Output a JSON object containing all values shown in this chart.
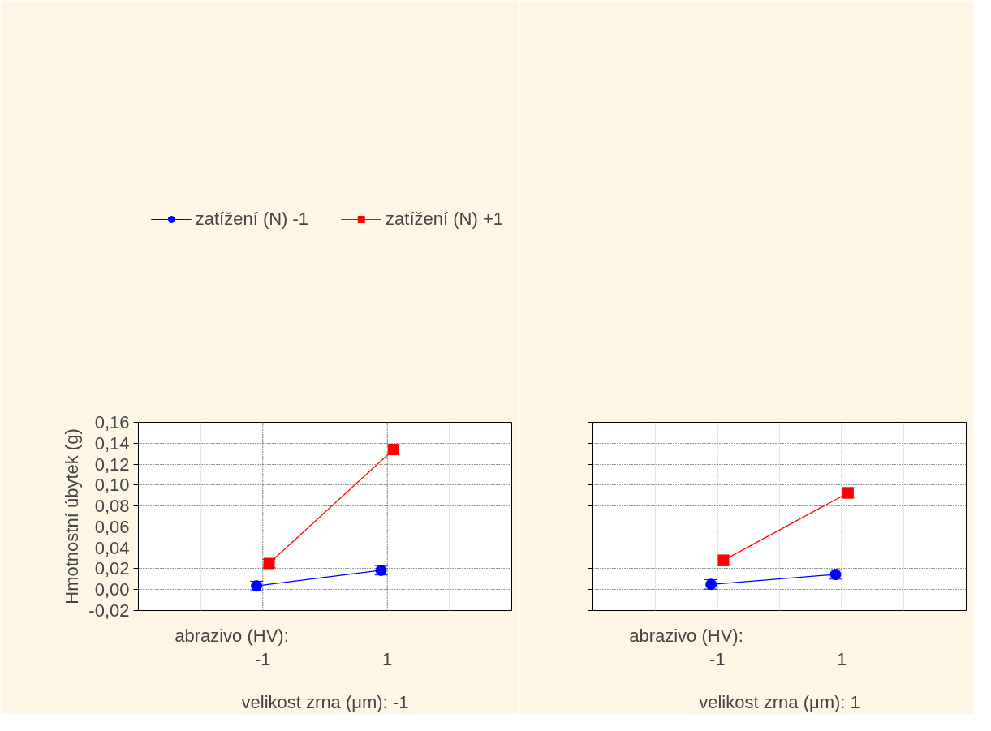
{
  "chart_data": [
    {
      "type": "line",
      "categories": [
        "-1",
        "1"
      ],
      "xlabel": "velikost zrna (μm): -1",
      "ylabel": "Hmotnostní úbytek (g)",
      "annotations": [
        "abrazivo (HV):"
      ],
      "ylim": [
        -0.02,
        0.16
      ],
      "yticks": [
        {
          "value": -0.02,
          "label": "-0,02"
        },
        {
          "value": 0,
          "label": "0,00"
        },
        {
          "value": 0.02,
          "label": "0,02"
        },
        {
          "value": 0.04,
          "label": "0,04"
        },
        {
          "value": 0.06,
          "label": "0,06"
        },
        {
          "value": 0.08,
          "label": "0,08"
        },
        {
          "value": 0.1,
          "label": "0,10"
        },
        {
          "value": 0.12,
          "label": "0,12"
        },
        {
          "value": 0.14,
          "label": "0,14"
        },
        {
          "value": 0.16,
          "label": "0,16"
        }
      ],
      "grid": true,
      "legend": "top",
      "series": [
        {
          "name": "zatížení (N) -1",
          "color": "#0000ff",
          "marker": "circle",
          "values": [
            0.0035,
            0.0185
          ],
          "errors": [
            0.0045,
            0.0045
          ]
        },
        {
          "name": "zatížení (N) +1",
          "color": "#ff0000",
          "marker": "square",
          "values": [
            0.025,
            0.134
          ],
          "errors": [
            0.004,
            0.004
          ]
        }
      ]
    },
    {
      "type": "line",
      "categories": [
        "-1",
        "1"
      ],
      "xlabel": "velikost zrna (μm): 1",
      "annotations": [
        "abrazivo (HV):"
      ],
      "ylim": [
        -0.02,
        0.16
      ],
      "yticks": [
        -0.02,
        0,
        0.02,
        0.04,
        0.06,
        0.08,
        0.1,
        0.12,
        0.14,
        0.16
      ],
      "grid": true,
      "tick_labels": "x",
      "series": [
        {
          "color": "#0000ff",
          "marker": "circle",
          "values": [
            0.005,
            0.0145
          ],
          "errors": [
            0.0045,
            0.0045
          ]
        },
        {
          "color": "#ff0000",
          "marker": "square",
          "values": [
            0.028,
            0.0925
          ],
          "errors": [
            0.005,
            0.005
          ]
        }
      ]
    }
  ]
}
